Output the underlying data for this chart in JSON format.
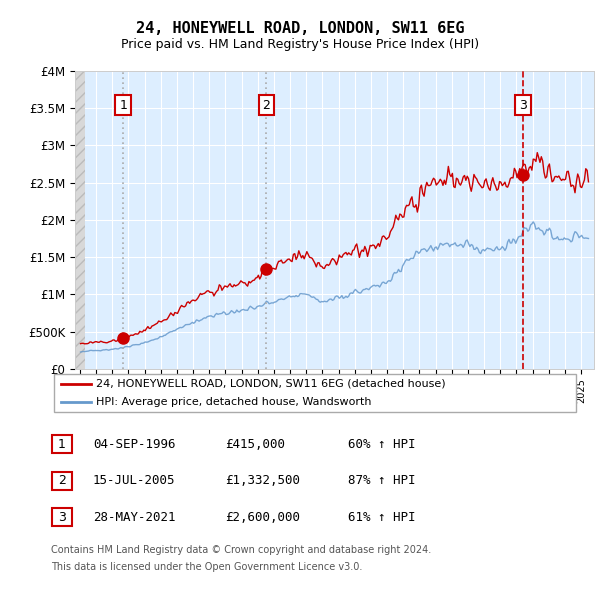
{
  "title": "24, HONEYWELL ROAD, LONDON, SW11 6EG",
  "subtitle": "Price paid vs. HM Land Registry's House Price Index (HPI)",
  "legend_line1": "24, HONEYWELL ROAD, LONDON, SW11 6EG (detached house)",
  "legend_line2": "HPI: Average price, detached house, Wandsworth",
  "footnote_line1": "Contains HM Land Registry data © Crown copyright and database right 2024.",
  "footnote_line2": "This data is licensed under the Open Government Licence v3.0.",
  "sale_display": [
    {
      "label": "1",
      "date_str": "04-SEP-1996",
      "price_str": "£415,000",
      "pct_str": "60% ↑ HPI"
    },
    {
      "label": "2",
      "date_str": "15-JUL-2005",
      "price_str": "£1,332,500",
      "pct_str": "87% ↑ HPI"
    },
    {
      "label": "3",
      "date_str": "28-MAY-2021",
      "price_str": "£2,600,000",
      "pct_str": "61% ↑ HPI"
    }
  ],
  "sale_dates_float": [
    1996.676,
    2005.538,
    2021.411
  ],
  "sale_prices": [
    415000,
    1332500,
    2600000
  ],
  "sale_vline_styles": [
    "dotted",
    "dotted",
    "dashed"
  ],
  "sale_vline_colors": [
    "#aaaaaa",
    "#aaaaaa",
    "#cc0000"
  ],
  "red_color": "#cc0000",
  "blue_color": "#6699cc",
  "bg_color": "#ddeeff",
  "ylim": [
    0,
    4000000
  ],
  "ytick_vals": [
    0,
    500000,
    1000000,
    1500000,
    2000000,
    2500000,
    3000000,
    3500000,
    4000000
  ],
  "ytick_labels": [
    "£0",
    "£500K",
    "£1M",
    "£1.5M",
    "£2M",
    "£2.5M",
    "£3M",
    "£3.5M",
    "£4M"
  ],
  "xmin": 1993.7,
  "xmax": 2025.8,
  "hatch_end": 1994.3
}
